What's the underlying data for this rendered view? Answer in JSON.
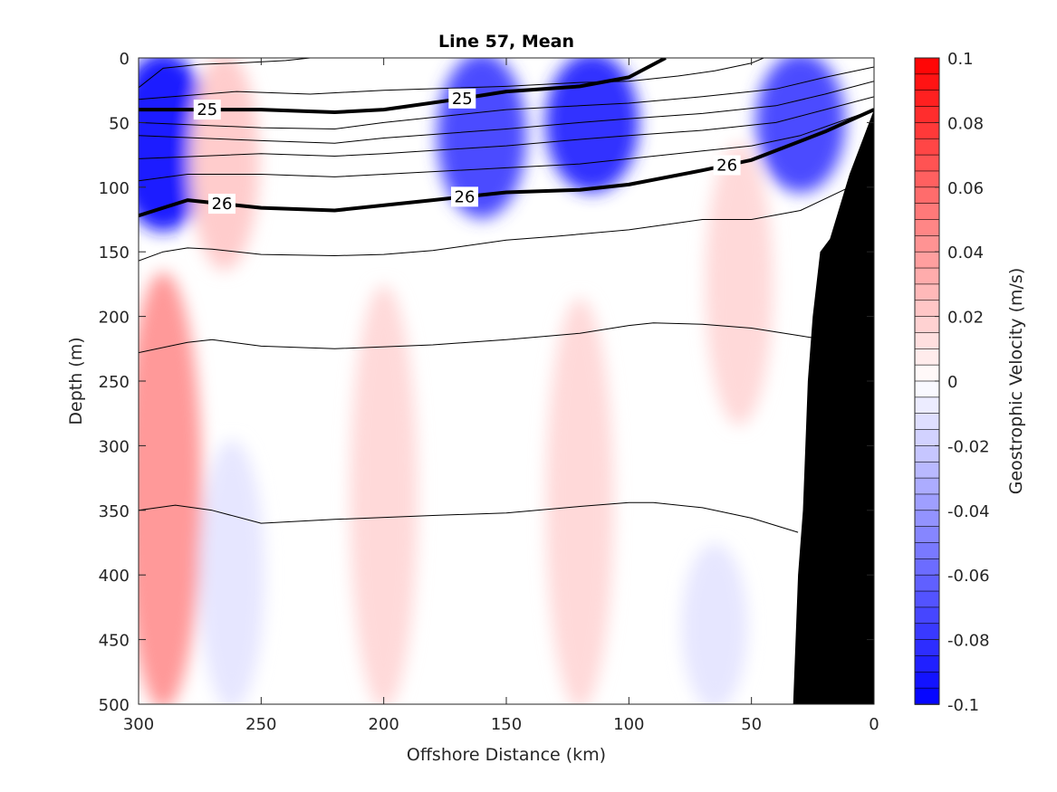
{
  "chart_data": {
    "type": "heatmap",
    "title": "Line 57, Mean",
    "xlabel": "Offshore Distance (km)",
    "ylabel": "Depth (m)",
    "xlim": [
      300,
      0
    ],
    "ylim": [
      500,
      0
    ],
    "x_reversed": true,
    "y_reversed": true,
    "xticks": [
      300,
      250,
      200,
      150,
      100,
      50,
      0
    ],
    "yticks": [
      0,
      50,
      100,
      150,
      200,
      250,
      300,
      350,
      400,
      450,
      500
    ],
    "colorbar": {
      "label": "Geostrophic Velocity (m/s)",
      "limits": [
        -0.1,
        0.1
      ],
      "levels": 40,
      "ticks": [
        0.1,
        0.08,
        0.06,
        0.04,
        0.02,
        0,
        -0.02,
        -0.04,
        -0.06,
        -0.08,
        -0.1
      ],
      "tick_labels": [
        "0.1",
        "0.08",
        "0.06",
        "0.04",
        "0.02",
        "0",
        "-0.02",
        "-0.04",
        "-0.06",
        "-0.08",
        "-0.1"
      ],
      "colormap": {
        "negative": "#0000ff",
        "zero": "#ffffff",
        "positive": "#ff0000"
      }
    },
    "velocity_features": [
      {
        "x_center": 290,
        "depth_range": [
          0,
          130
        ],
        "value": -0.09
      },
      {
        "x_center": 160,
        "depth_range": [
          0,
          120
        ],
        "value": -0.07
      },
      {
        "x_center": 115,
        "depth_range": [
          0,
          100
        ],
        "value": -0.08
      },
      {
        "x_center": 30,
        "depth_range": [
          0,
          100
        ],
        "value": -0.07
      },
      {
        "x_center": 265,
        "depth_range": [
          0,
          160
        ],
        "value": 0.02
      },
      {
        "x_center": 290,
        "depth_range": [
          170,
          500
        ],
        "value": 0.04
      },
      {
        "x_center": 200,
        "depth_range": [
          180,
          500
        ],
        "value": 0.015
      },
      {
        "x_center": 120,
        "depth_range": [
          190,
          500
        ],
        "value": 0.015
      },
      {
        "x_center": 55,
        "depth_range": [
          70,
          280
        ],
        "value": 0.015
      },
      {
        "x_center": 262,
        "depth_range": [
          300,
          500
        ],
        "value": -0.01
      },
      {
        "x_center": 65,
        "depth_range": [
          380,
          500
        ],
        "value": -0.01
      }
    ],
    "isopycnals": [
      {
        "level": 25,
        "labeled": true,
        "label": "25",
        "x": [
          300,
          280,
          250,
          220,
          200,
          170,
          150,
          120,
          100,
          85
        ],
        "y": [
          40,
          40,
          40,
          42,
          40,
          32,
          26,
          22,
          15,
          0
        ]
      },
      {
        "level": 26,
        "labeled": true,
        "label": "26",
        "x": [
          300,
          280,
          250,
          220,
          180,
          150,
          120,
          100,
          70,
          50,
          20,
          0
        ],
        "y": [
          122,
          110,
          116,
          118,
          110,
          104,
          102,
          98,
          87,
          79,
          57,
          40
        ]
      },
      {
        "level": null,
        "labeled": false,
        "x": [
          300,
          290,
          275,
          260,
          240,
          230
        ],
        "y": [
          23,
          8,
          5,
          4,
          2,
          0
        ]
      },
      {
        "level": null,
        "labeled": false,
        "x": [
          300,
          260,
          230,
          200,
          150,
          120,
          100,
          80,
          65,
          50,
          45
        ],
        "y": [
          32,
          26,
          28,
          25,
          22,
          19,
          18,
          14,
          10,
          4,
          0
        ]
      },
      {
        "level": null,
        "labeled": false,
        "x": [
          300,
          250,
          220,
          200,
          150,
          120,
          100,
          70,
          40,
          20,
          0
        ],
        "y": [
          50,
          54,
          55,
          50,
          40,
          37,
          35,
          30,
          24,
          15,
          7
        ]
      },
      {
        "level": null,
        "labeled": false,
        "x": [
          300,
          250,
          220,
          200,
          150,
          120,
          100,
          70,
          40,
          20,
          0
        ],
        "y": [
          60,
          64,
          66,
          62,
          55,
          50,
          47,
          43,
          37,
          28,
          18
        ]
      },
      {
        "level": null,
        "labeled": false,
        "x": [
          300,
          250,
          220,
          200,
          150,
          120,
          100,
          70,
          40,
          20,
          0
        ],
        "y": [
          78,
          74,
          76,
          74,
          68,
          63,
          60,
          56,
          50,
          40,
          30
        ]
      },
      {
        "level": null,
        "labeled": false,
        "x": [
          300,
          280,
          250,
          220,
          200,
          150,
          120,
          100,
          70,
          50,
          30,
          15,
          0
        ],
        "y": [
          95,
          90,
          90,
          92,
          90,
          85,
          82,
          78,
          72,
          68,
          60,
          50,
          40
        ]
      },
      {
        "level": null,
        "labeled": false,
        "x": [
          300,
          290,
          280,
          270,
          250,
          220,
          200,
          180,
          150,
          130,
          100,
          70,
          50,
          30,
          10,
          0
        ],
        "y": [
          157,
          150,
          147,
          148,
          152,
          153,
          152,
          149,
          141,
          138,
          133,
          125,
          125,
          118,
          100,
          100
        ]
      },
      {
        "level": null,
        "labeled": false,
        "x": [
          300,
          280,
          270,
          250,
          220,
          180,
          150,
          120,
          100,
          90,
          70,
          50,
          30,
          20
        ],
        "y": [
          228,
          220,
          218,
          223,
          225,
          222,
          218,
          213,
          207,
          205,
          206,
          209,
          215,
          218
        ]
      },
      {
        "level": null,
        "labeled": false,
        "x": [
          300,
          285,
          270,
          250,
          220,
          180,
          150,
          120,
          100,
          90,
          70,
          50,
          31
        ],
        "y": [
          350,
          346,
          350,
          360,
          357,
          354,
          352,
          347,
          344,
          344,
          348,
          356,
          367
        ]
      }
    ],
    "bathymetry": {
      "color": "#000000",
      "x": [
        33,
        31,
        29,
        27,
        25,
        22,
        18,
        10,
        0,
        0
      ],
      "y": [
        500,
        400,
        350,
        250,
        200,
        150,
        140,
        90,
        40,
        500
      ]
    },
    "grid": false
  }
}
